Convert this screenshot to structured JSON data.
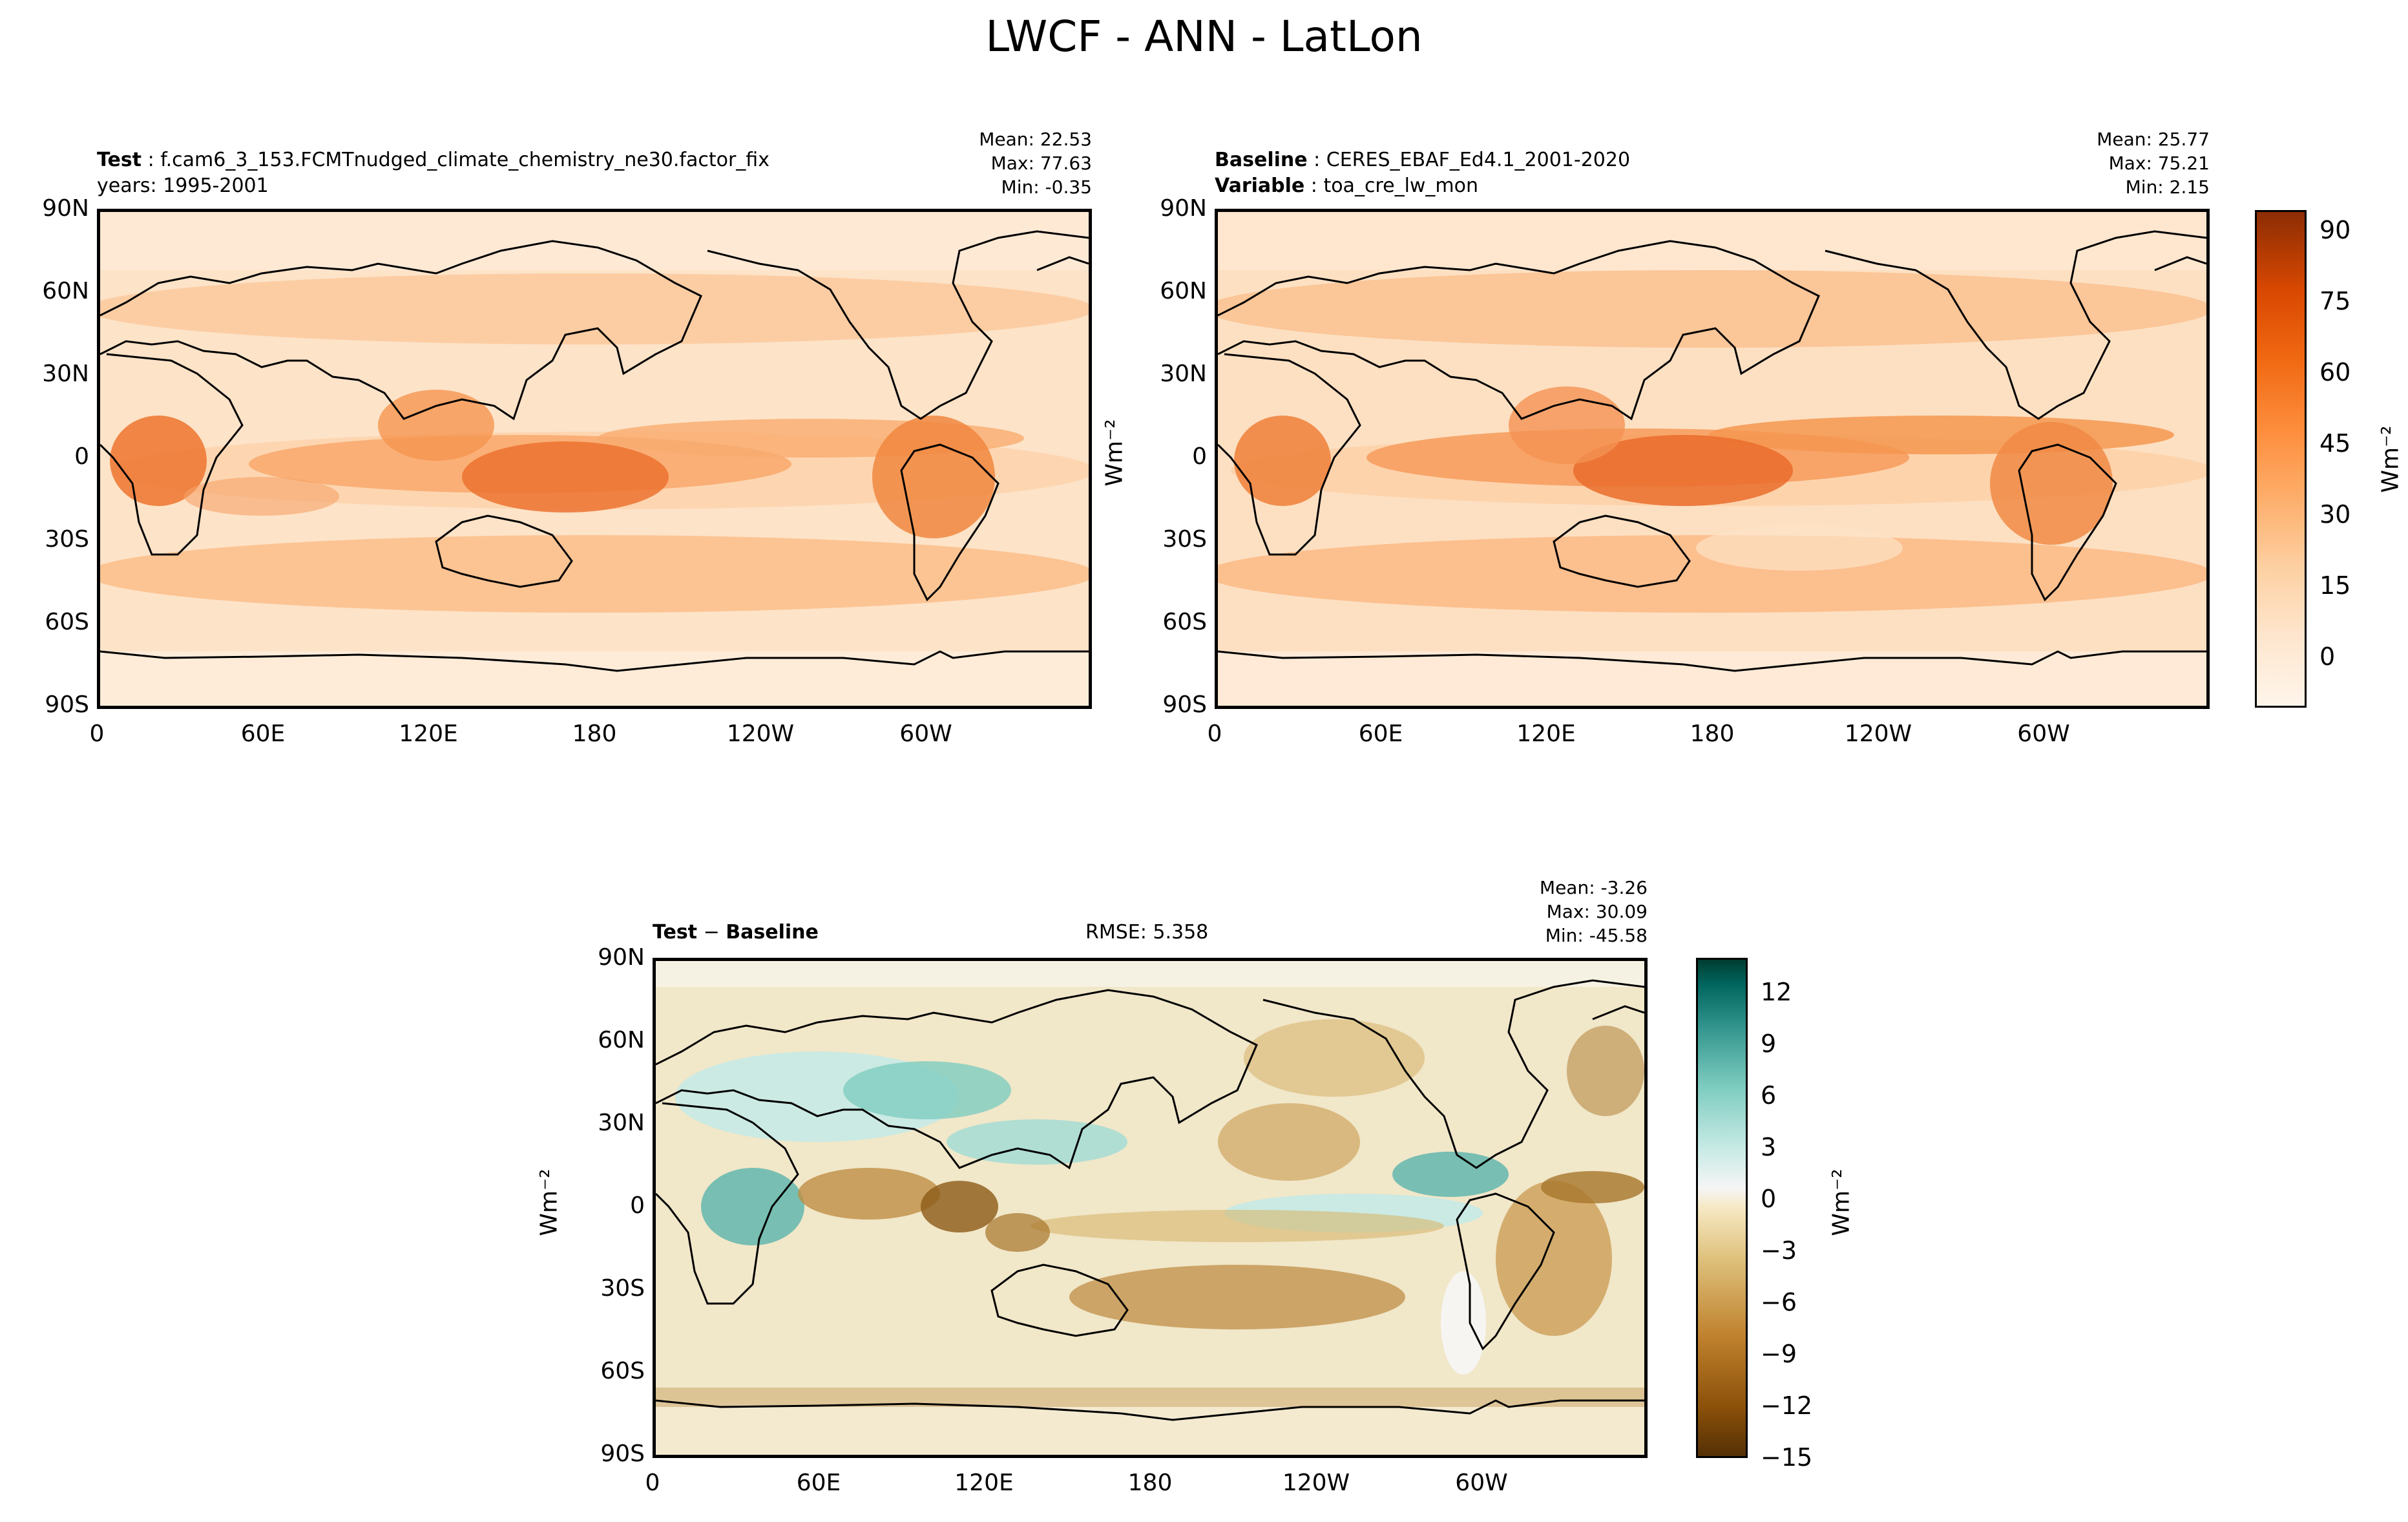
{
  "title": "LWCF - ANN - LatLon",
  "unit_label": "Wm⁻²",
  "chart_data": [
    {
      "type": "heatmap",
      "panel": "test",
      "label_key": "Test",
      "label_value": "f.cam6_3_153.FCMTnudged_climate_chemistry_ne30.factor_fix",
      "subtitle": "years: 1995-2001",
      "stats": {
        "mean": "Mean: 22.53",
        "max": "Max: 77.63",
        "min": "Min: -0.35"
      },
      "yticks": [
        "90N",
        "60N",
        "30N",
        "0",
        "30S",
        "60S",
        "90S"
      ],
      "xticks": [
        "0",
        "60E",
        "120E",
        "180",
        "120W",
        "60W"
      ],
      "ylim": [
        -90,
        90
      ],
      "xlim": [
        0,
        360
      ],
      "colormap": "Oranges"
    },
    {
      "type": "heatmap",
      "panel": "baseline",
      "label_key": "Baseline",
      "label_value": "CERES_EBAF_Ed4.1_2001-2020",
      "label2_key": "Variable",
      "label2_value": "toa_cre_lw_mon",
      "stats": {
        "mean": "Mean: 25.77",
        "max": "Max: 75.21",
        "min": "Min:  2.15"
      },
      "yticks": [
        "90N",
        "60N",
        "30N",
        "0",
        "30S",
        "60S",
        "90S"
      ],
      "xticks": [
        "0",
        "60E",
        "120E",
        "180",
        "120W",
        "60W"
      ],
      "colorbar": {
        "ticks": [
          "90",
          "75",
          "60",
          "45",
          "30",
          "15",
          "0"
        ],
        "range": [
          -10,
          95
        ]
      },
      "colormap": "Oranges"
    },
    {
      "type": "heatmap",
      "panel": "difference",
      "label_a": "Test",
      "label_sep": " − ",
      "label_b": "Baseline",
      "rmse": "RMSE: 5.358",
      "stats": {
        "mean": "Mean: -3.26",
        "max": "Max: 30.09",
        "min": "Min: -45.58"
      },
      "yticks": [
        "90N",
        "60N",
        "30N",
        "0",
        "30S",
        "60S",
        "90S"
      ],
      "xticks": [
        "0",
        "60E",
        "120E",
        "180",
        "120W",
        "60W"
      ],
      "colorbar": {
        "ticks": [
          "12",
          "9",
          "6",
          "3",
          "0",
          "−3",
          "−6",
          "−9",
          "−12",
          "−15"
        ],
        "range": [
          -15,
          14
        ]
      },
      "colormap": "BrBG"
    }
  ]
}
